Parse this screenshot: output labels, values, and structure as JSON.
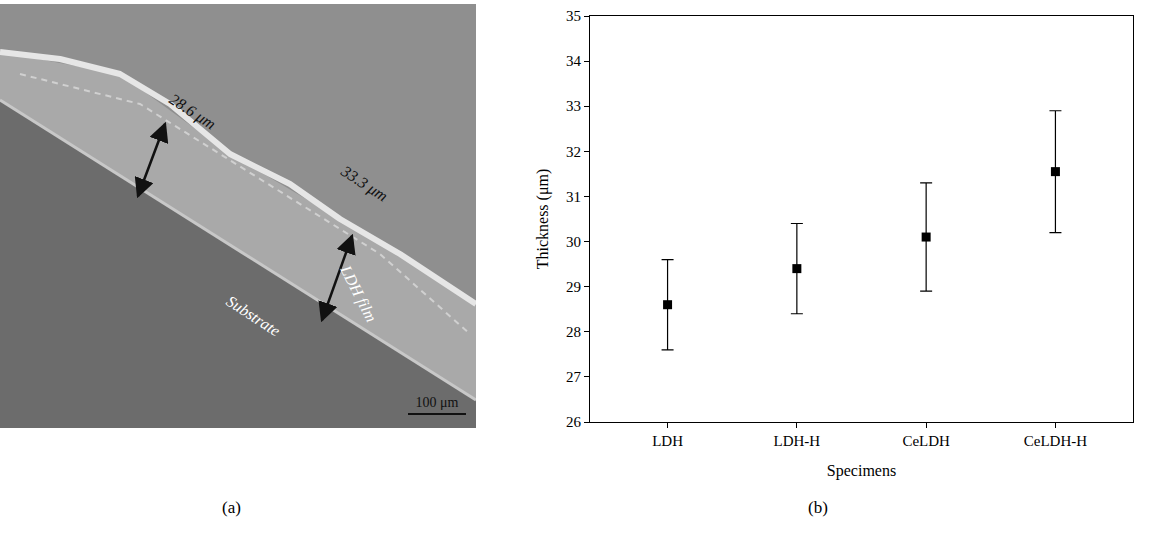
{
  "chart_data": {
    "type": "scatter",
    "marker": "square",
    "color": "#000000",
    "x_label": "Specimens",
    "y_label": "Thickness (μm)",
    "categories": [
      "LDH",
      "LDH-H",
      "CeLDH",
      "CeLDH-H"
    ],
    "values": [
      28.6,
      29.4,
      30.1,
      31.55
    ],
    "error": [
      1.0,
      1.0,
      1.2,
      1.35
    ],
    "ylim": [
      26,
      35
    ],
    "yticks": [
      26,
      27,
      28,
      29,
      30,
      31,
      32,
      33,
      34,
      35
    ],
    "grid": false
  },
  "figure": {
    "panel_labels": [
      "(a)",
      "(b)"
    ],
    "image": {
      "measurements": [
        "28.6 μm",
        "33.3 μm"
      ],
      "substrate_label": "Substrate",
      "film_label": "LDH film",
      "scale_bar": "100 μm"
    }
  }
}
